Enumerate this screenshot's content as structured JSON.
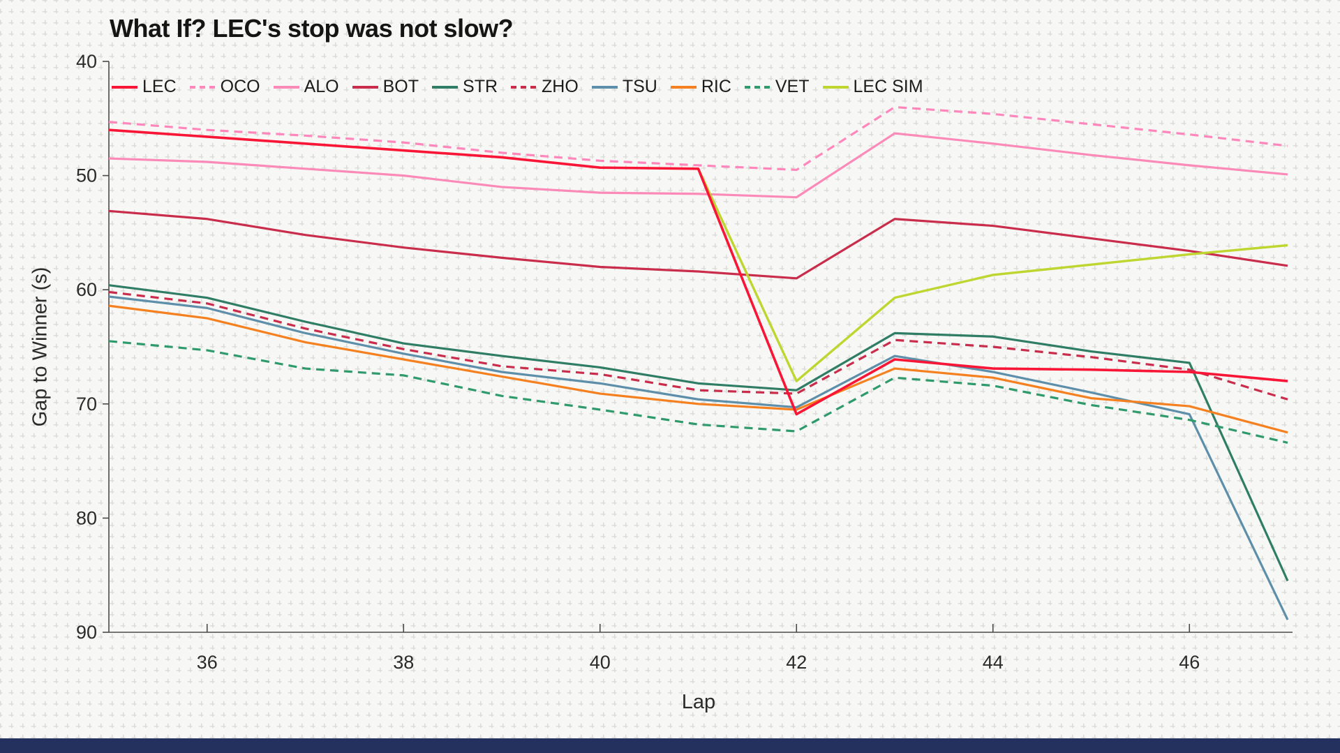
{
  "page": {
    "footer_bar_color": "#24315f",
    "background_color": "#f7f7f5",
    "axis_color": "#4a4a4a",
    "tick_label_color": "#2b2b2b"
  },
  "chart_data": {
    "type": "line",
    "title": "What If? LEC's stop was not slow?",
    "xlabel": "Lap",
    "ylabel": "Gap to Winner (s)",
    "x": [
      35,
      36,
      37,
      38,
      39,
      40,
      41,
      42,
      43,
      44,
      45,
      46,
      47
    ],
    "xticks": [
      36,
      38,
      40,
      42,
      44,
      46
    ],
    "yticks": [
      40,
      50,
      60,
      70,
      80,
      90
    ],
    "xlim": [
      35,
      47
    ],
    "ylim": [
      40,
      90
    ],
    "y_axis_inverted": true,
    "grid": "background cross-hatch only",
    "legend_position": "top horizontal row",
    "series": [
      {
        "name": "LEC",
        "color": "#f91536",
        "dash": false,
        "width": 3.6,
        "values": [
          46.0,
          46.6,
          47.2,
          47.8,
          48.4,
          49.3,
          49.4,
          70.9,
          66.1,
          66.9,
          67.0,
          67.2,
          68.0
        ]
      },
      {
        "name": "OCO",
        "color": "#ff87bc",
        "dash": true,
        "width": 3.2,
        "values": [
          45.3,
          46.0,
          46.5,
          47.1,
          48.0,
          48.7,
          49.1,
          49.5,
          44.0,
          44.6,
          45.5,
          46.4,
          47.4
        ]
      },
      {
        "name": "ALO",
        "color": "#fb8ab8",
        "dash": false,
        "width": 3.2,
        "values": [
          48.5,
          48.8,
          49.4,
          50.0,
          51.0,
          51.5,
          51.6,
          51.9,
          46.3,
          47.2,
          48.2,
          49.1,
          49.9
        ]
      },
      {
        "name": "BOT",
        "color": "#c92d4b",
        "dash": false,
        "width": 3.2,
        "values": [
          53.1,
          53.8,
          55.2,
          56.3,
          57.2,
          58.0,
          58.4,
          59.0,
          53.8,
          54.4,
          55.5,
          56.6,
          57.9
        ]
      },
      {
        "name": "STR",
        "color": "#2e7d64",
        "dash": false,
        "width": 3.2,
        "values": [
          59.6,
          60.7,
          62.8,
          64.7,
          65.8,
          66.8,
          68.2,
          68.8,
          63.8,
          64.1,
          65.4,
          66.4,
          85.5
        ]
      },
      {
        "name": "ZHO",
        "color": "#c92d4b",
        "dash": true,
        "width": 3.2,
        "values": [
          60.2,
          61.2,
          63.4,
          65.2,
          66.7,
          67.4,
          68.8,
          69.1,
          64.4,
          65.0,
          65.9,
          67.0,
          69.6
        ]
      },
      {
        "name": "TSU",
        "color": "#5e8faa",
        "dash": false,
        "width": 3.2,
        "values": [
          60.6,
          61.6,
          63.8,
          65.6,
          67.2,
          68.2,
          69.6,
          70.3,
          65.8,
          67.2,
          69.0,
          70.9,
          88.9
        ]
      },
      {
        "name": "RIC",
        "color": "#f58020",
        "dash": false,
        "width": 3.2,
        "values": [
          61.4,
          62.5,
          64.6,
          66.1,
          67.6,
          69.1,
          70.0,
          70.5,
          66.9,
          67.7,
          69.5,
          70.2,
          72.5
        ]
      },
      {
        "name": "VET",
        "color": "#2f9a6c",
        "dash": true,
        "width": 3.2,
        "values": [
          64.5,
          65.3,
          66.9,
          67.5,
          69.3,
          70.5,
          71.8,
          72.4,
          67.7,
          68.4,
          70.1,
          71.4,
          73.4
        ]
      },
      {
        "name": "LEC SIM",
        "color": "#bed62f",
        "dash": false,
        "width": 3.4,
        "values": [
          null,
          null,
          null,
          null,
          null,
          null,
          49.4,
          68.0,
          60.7,
          58.7,
          57.8,
          56.9,
          56.1
        ]
      }
    ]
  }
}
